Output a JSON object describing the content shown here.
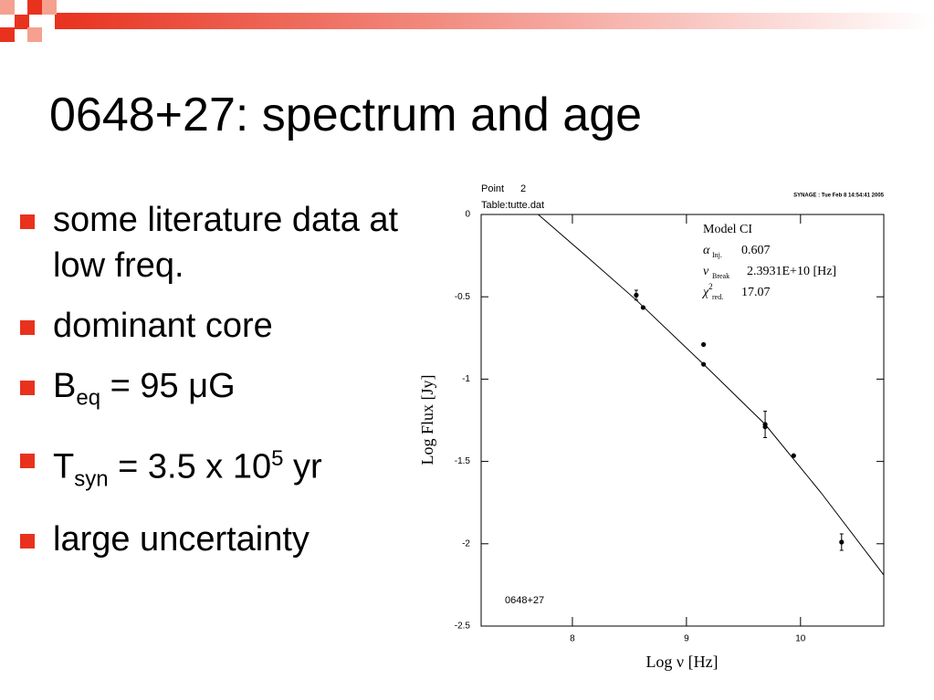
{
  "title": "0648+27: spectrum and age",
  "bullets": [
    [
      "some literature data at low freq."
    ],
    [
      "dominant core"
    ],
    [
      "B",
      "eq",
      "= 95 μG"
    ],
    [
      "T",
      "syn",
      "= 3.5 x 10",
      "5",
      "yr"
    ],
    [
      "large uncertainty"
    ]
  ],
  "chart_data": {
    "type": "scatter",
    "point_label": "Point",
    "point_number": 2,
    "table": "Table:tutte.dat",
    "stamp": "SYNAGE : Tue Feb 8 14:54:41 2005",
    "label": "0648+27",
    "xlabel": "Log ν [Hz]",
    "ylabel": "Log Flux [Jy]",
    "model": {
      "title": "Model CI",
      "params": [
        {
          "symbol": "α",
          "sub": "Inj.",
          "value": 0.607
        },
        {
          "symbol": "ν",
          "sub": "Break",
          "value": "2.3931E+10 [Hz]"
        },
        {
          "symbol": "χ",
          "sup": "2",
          "sub": "red.",
          "value": 17.07
        }
      ]
    },
    "xlim": [
      7.2,
      10.73
    ],
    "xticks": [
      8,
      9,
      10
    ],
    "ylim": [
      -2.5,
      0
    ],
    "yticks": [
      0,
      -0.5,
      -1,
      -1.5,
      -2,
      -2.5
    ],
    "series": [
      {
        "color": "#000000",
        "x": [
          8.56,
          8.62,
          9.15,
          9.15,
          9.69,
          9.69,
          9.94,
          10.36
        ],
        "values": [
          -0.49,
          -0.565,
          -0.79,
          -0.91,
          -1.275,
          -1.29,
          -1.465,
          -1.99
        ],
        "errors": [
          0.03,
          null,
          null,
          null,
          0.08,
          null,
          null,
          0.05
        ]
      }
    ],
    "curve": {
      "color": "#000000",
      "x": [
        7.7,
        8.1,
        8.56,
        9.15,
        9.69,
        10.18,
        10.73
      ],
      "values": [
        0,
        -0.24,
        -0.52,
        -0.91,
        -1.275,
        -1.69,
        -2.19
      ]
    }
  }
}
